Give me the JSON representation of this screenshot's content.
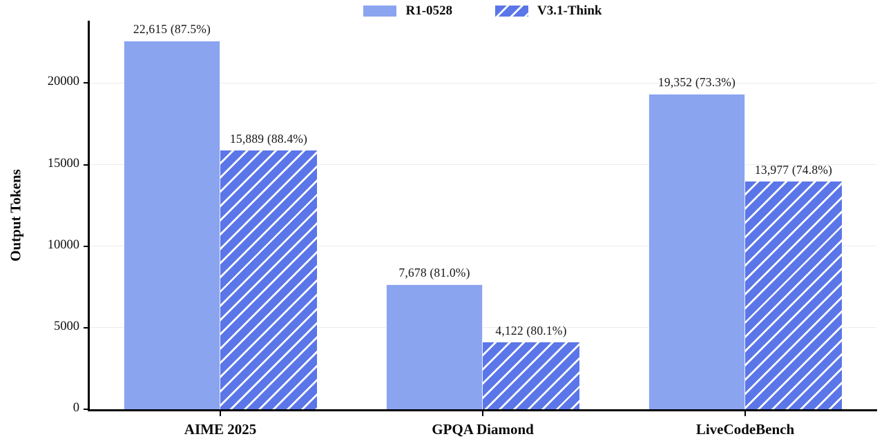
{
  "chart_data": {
    "type": "bar",
    "title": "",
    "ylabel": "Output Tokens",
    "xlabel": "",
    "categories": [
      "AIME 2025",
      "GPQA Diamond",
      "LiveCodeBench"
    ],
    "series": [
      {
        "name": "R1-0528",
        "style": "solid",
        "color": "#8ba4f0",
        "values": [
          22615,
          7678,
          19352
        ],
        "labels": [
          "22,615 (87.5%)",
          "7,678 (81.0%)",
          "19,352 (73.3%)"
        ]
      },
      {
        "name": "V3.1-Think",
        "style": "hatched",
        "color": "#5b76e8",
        "hatch_color": "#ffffff",
        "values": [
          15889,
          4122,
          13977
        ],
        "labels": [
          "15,889 (88.4%)",
          "4,122 (80.1%)",
          "13,977 (74.8%)"
        ]
      }
    ],
    "yticks": [
      0,
      5000,
      10000,
      15000,
      20000
    ],
    "ylim": [
      0,
      23830
    ],
    "grid": true,
    "legend_position": "top-center"
  },
  "colors": {
    "axis": "#000000",
    "grid": "#ececec",
    "text": "#111111"
  }
}
